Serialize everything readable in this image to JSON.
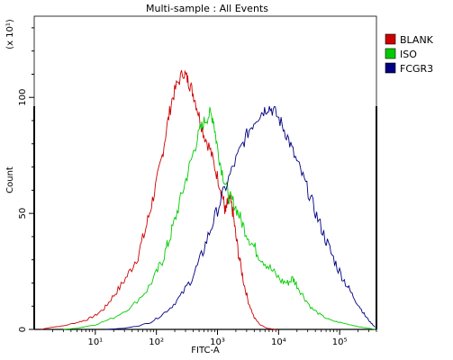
{
  "chart_data": {
    "type": "line",
    "title": "Multi-sample : All Events",
    "xlabel": "FITC-A",
    "ylabel": "Count",
    "y_multiplier_label": "(x 10¹)",
    "x_scale": "log",
    "xlim": [
      1,
      400000
    ],
    "ylim": [
      0,
      135
    ],
    "x_ticks": [
      {
        "value": 10,
        "label": "10¹"
      },
      {
        "value": 100,
        "label": "10²"
      },
      {
        "value": 1000,
        "label": "10³"
      },
      {
        "value": 10000,
        "label": "10⁴"
      },
      {
        "value": 100000,
        "label": "10⁵"
      }
    ],
    "y_ticks": [
      {
        "value": 0,
        "label": "0"
      },
      {
        "value": 50,
        "label": "50"
      },
      {
        "value": 100,
        "label": "100"
      }
    ],
    "grid": false,
    "legend_position": "top-right",
    "series": [
      {
        "name": "BLANK",
        "color": "#cc0000",
        "points": [
          [
            1.3,
            0
          ],
          [
            2,
            1
          ],
          [
            3,
            1.5
          ],
          [
            5,
            3
          ],
          [
            7,
            4
          ],
          [
            10,
            6
          ],
          [
            14,
            9
          ],
          [
            18,
            13
          ],
          [
            25,
            18
          ],
          [
            35,
            24
          ],
          [
            50,
            32
          ],
          [
            65,
            42
          ],
          [
            80,
            52
          ],
          [
            100,
            63
          ],
          [
            125,
            75
          ],
          [
            150,
            88
          ],
          [
            180,
            99
          ],
          [
            220,
            106
          ],
          [
            280,
            111
          ],
          [
            320,
            108
          ],
          [
            360,
            105
          ],
          [
            420,
            100
          ],
          [
            500,
            92
          ],
          [
            600,
            84
          ],
          [
            750,
            78
          ],
          [
            900,
            70
          ],
          [
            1100,
            62
          ],
          [
            1250,
            56
          ],
          [
            1350,
            50
          ],
          [
            1450,
            54
          ],
          [
            1600,
            56
          ],
          [
            1800,
            50
          ],
          [
            2000,
            40
          ],
          [
            2300,
            30
          ],
          [
            2700,
            20
          ],
          [
            3200,
            12
          ],
          [
            4000,
            5
          ],
          [
            5000,
            2
          ],
          [
            6500,
            0.5
          ],
          [
            9000,
            0
          ]
        ]
      },
      {
        "name": "ISO",
        "color": "#00cc00",
        "points": [
          [
            3,
            0
          ],
          [
            5,
            0.5
          ],
          [
            10,
            2
          ],
          [
            20,
            5
          ],
          [
            40,
            10
          ],
          [
            70,
            17
          ],
          [
            100,
            24
          ],
          [
            130,
            31
          ],
          [
            160,
            38
          ],
          [
            200,
            47
          ],
          [
            260,
            58
          ],
          [
            330,
            68
          ],
          [
            420,
            78
          ],
          [
            520,
            86
          ],
          [
            620,
            90
          ],
          [
            750,
            93
          ],
          [
            850,
            91
          ],
          [
            950,
            82
          ],
          [
            1100,
            72
          ],
          [
            1300,
            64
          ],
          [
            1550,
            57
          ],
          [
            1800,
            55
          ],
          [
            2200,
            50
          ],
          [
            2700,
            44
          ],
          [
            3500,
            38
          ],
          [
            4500,
            33
          ],
          [
            6000,
            29
          ],
          [
            8000,
            25
          ],
          [
            11000,
            21
          ],
          [
            14000,
            20
          ],
          [
            17000,
            22
          ],
          [
            20000,
            19
          ],
          [
            26000,
            14
          ],
          [
            35000,
            9
          ],
          [
            50000,
            6
          ],
          [
            70000,
            4
          ],
          [
            100000,
            3
          ],
          [
            150000,
            2
          ],
          [
            220000,
            1
          ],
          [
            300000,
            0.5
          ],
          [
            380000,
            0
          ]
        ]
      },
      {
        "name": "FCGR3",
        "color": "#000080",
        "points": [
          [
            15,
            0
          ],
          [
            30,
            0.5
          ],
          [
            50,
            1.5
          ],
          [
            80,
            3
          ],
          [
            120,
            6
          ],
          [
            180,
            10
          ],
          [
            260,
            15
          ],
          [
            380,
            22
          ],
          [
            520,
            30
          ],
          [
            700,
            40
          ],
          [
            950,
            50
          ],
          [
            1300,
            60
          ],
          [
            1800,
            70
          ],
          [
            2500,
            79
          ],
          [
            3300,
            86
          ],
          [
            4300,
            91
          ],
          [
            5500,
            94
          ],
          [
            6800,
            96
          ],
          [
            8500,
            94
          ],
          [
            11000,
            89
          ],
          [
            14000,
            83
          ],
          [
            18000,
            75
          ],
          [
            24000,
            67
          ],
          [
            32000,
            58
          ],
          [
            42000,
            49
          ],
          [
            55000,
            41
          ],
          [
            72000,
            33
          ],
          [
            95000,
            26
          ],
          [
            125000,
            20
          ],
          [
            160000,
            15
          ],
          [
            210000,
            10
          ],
          [
            260000,
            6
          ],
          [
            320000,
            3
          ],
          [
            380000,
            1
          ]
        ]
      }
    ]
  }
}
